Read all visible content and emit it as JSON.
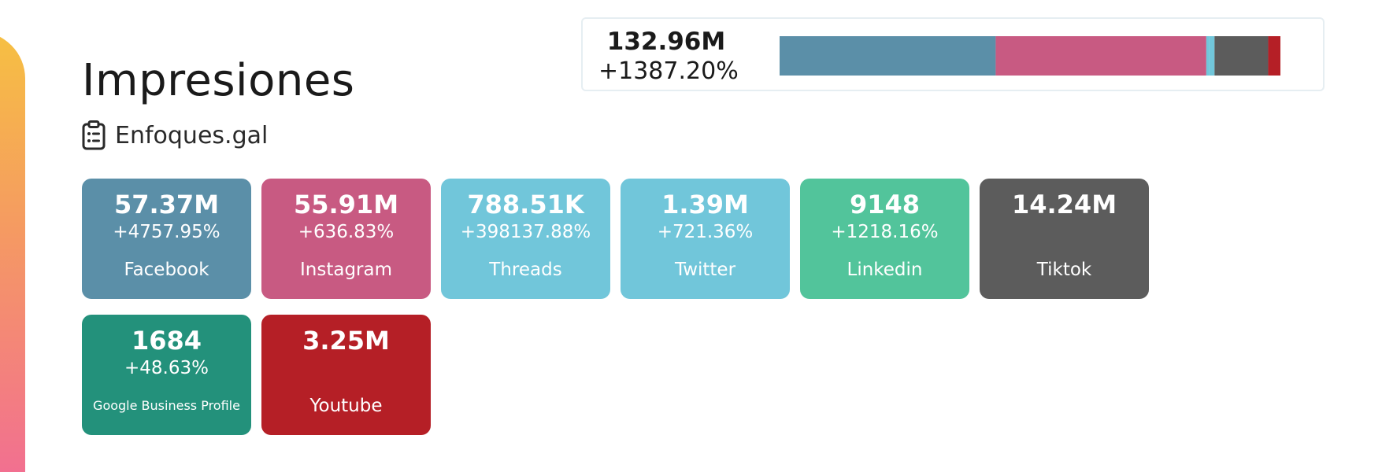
{
  "page": {
    "title": "Impresiones",
    "subtitle": "Enfoques.gal",
    "subtitle_icon": "clipboard-list-icon"
  },
  "summary": {
    "total_value": "132.96M",
    "total_change": "+1387.20%"
  },
  "colors": {
    "facebook": "#5b8fa8",
    "instagram": "#c85a82",
    "threads": "#71c6da",
    "twitter": "#71c6da",
    "linkedin": "#52c49b",
    "tiktok": "#5c5c5c",
    "google_business_profile": "#23917b",
    "youtube": "#b51f26"
  },
  "networks": [
    {
      "id": "facebook",
      "name": "Facebook",
      "value": "57.37M",
      "change": "+4757.95%",
      "share": 57.37,
      "color": "#5b8fa8"
    },
    {
      "id": "instagram",
      "name": "Instagram",
      "value": "55.91M",
      "change": "+636.83%",
      "share": 55.91,
      "color": "#c85a82"
    },
    {
      "id": "threads",
      "name": "Threads",
      "value": "788.51K",
      "change": "+398137.88%",
      "share": 0.78851,
      "color": "#71c6da"
    },
    {
      "id": "twitter",
      "name": "Twitter",
      "value": "1.39M",
      "change": "+721.36%",
      "share": 1.39,
      "color": "#71c6da"
    },
    {
      "id": "linkedin",
      "name": "Linkedin",
      "value": "9148",
      "change": "+1218.16%",
      "share": 0.009148,
      "color": "#52c49b"
    },
    {
      "id": "tiktok",
      "name": "Tiktok",
      "value": "14.24M",
      "change": "",
      "share": 14.24,
      "color": "#5c5c5c"
    },
    {
      "id": "google-business-profile",
      "name": "Google Business Profile",
      "value": "1684",
      "change": "+48.63%",
      "share": 0.001684,
      "color": "#23917b"
    },
    {
      "id": "youtube",
      "name": "Youtube",
      "value": "3.25M",
      "change": "",
      "share": 3.25,
      "color": "#b51f26"
    }
  ]
}
